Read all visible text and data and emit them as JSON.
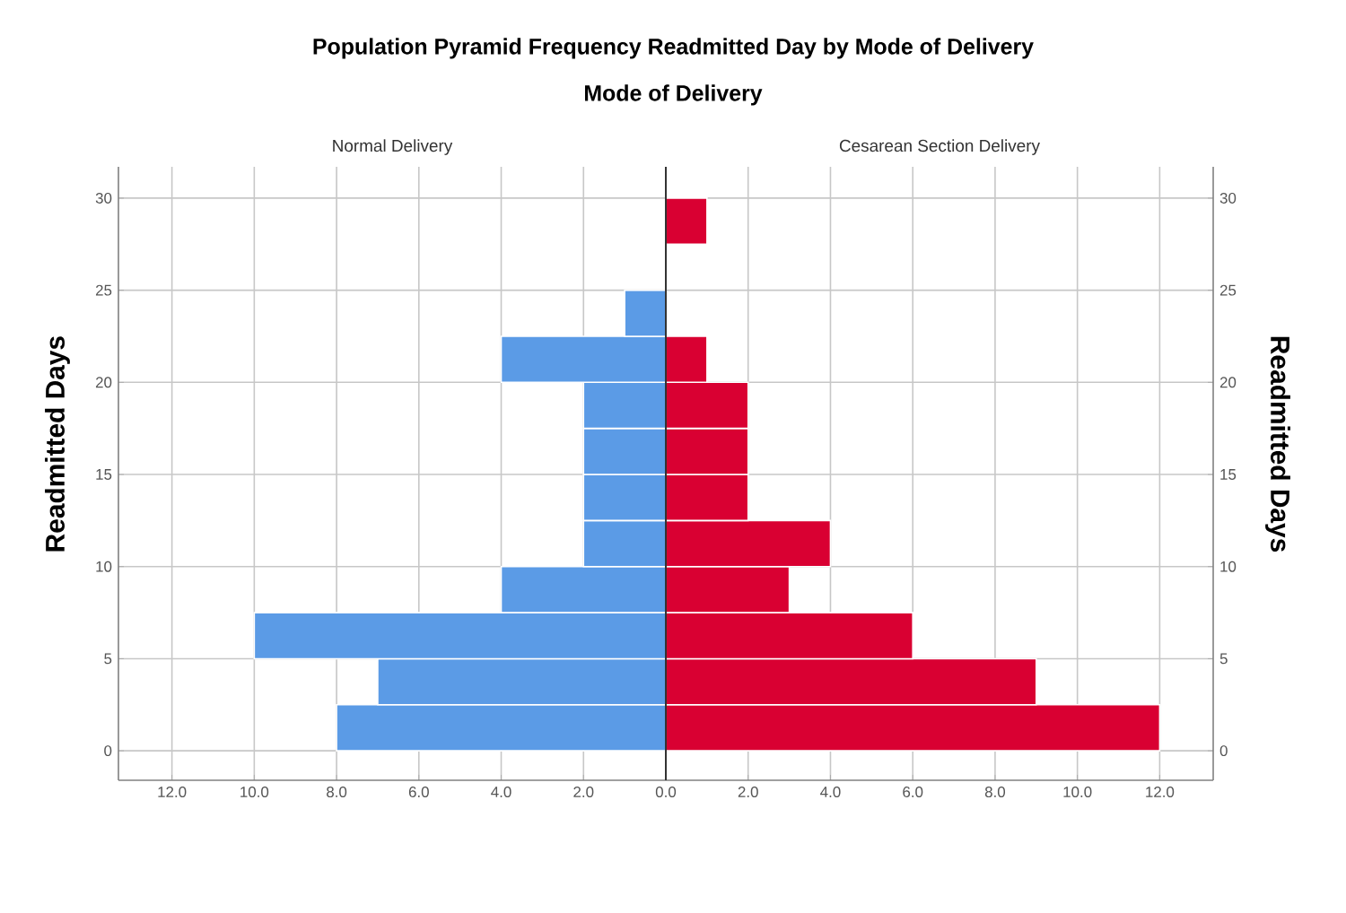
{
  "chart_data": [
    {
      "type": "histogram",
      "title": "Population Pyramid Frequency Readmitted Day by Mode of Delivery",
      "subtitle": "Mode of Delivery",
      "ylabel": "Readmitted Days",
      "orientation": "horizontal",
      "bins": [
        0,
        2.5,
        5,
        7.5,
        10,
        12.5,
        15,
        17.5,
        20,
        22.5,
        25,
        27.5,
        30
      ],
      "series": [
        {
          "name": "Normal Delivery",
          "color": "#5b9be6",
          "values": [
            8,
            7,
            10,
            4,
            2,
            2,
            2,
            2,
            4,
            1,
            0,
            0
          ]
        }
      ],
      "xlim": [
        13.3,
        0
      ],
      "xticks": [
        {
          "value": 12,
          "label": "12.0"
        },
        {
          "value": 10,
          "label": "10.0"
        },
        {
          "value": 8,
          "label": "8.0"
        },
        {
          "value": 6,
          "label": "6.0"
        },
        {
          "value": 4,
          "label": "4.0"
        },
        {
          "value": 2,
          "label": "2.0"
        },
        {
          "value": 0,
          "label": null
        }
      ],
      "ylim": [
        -1.6,
        31.7
      ],
      "yticks": [
        0,
        5,
        10,
        15,
        20,
        25,
        30
      ],
      "grid": true
    },
    {
      "type": "histogram",
      "ylabel": "Readmitted Days",
      "orientation": "horizontal",
      "bins": [
        0,
        2.5,
        5,
        7.5,
        10,
        12.5,
        15,
        17.5,
        20,
        22.5,
        25,
        27.5,
        30
      ],
      "series": [
        {
          "name": "Cesarean Section Delivery",
          "color": "#d90032",
          "values": [
            12,
            9,
            6,
            3,
            4,
            2,
            2,
            2,
            1,
            0,
            0,
            1
          ]
        }
      ],
      "xlim": [
        0,
        13.3
      ],
      "xticks": [
        {
          "value": 0,
          "label": "0.0"
        },
        {
          "value": 2,
          "label": "2.0"
        },
        {
          "value": 4,
          "label": "4.0"
        },
        {
          "value": 6,
          "label": "6.0"
        },
        {
          "value": 8,
          "label": "8.0"
        },
        {
          "value": 10,
          "label": "10.0"
        },
        {
          "value": 12,
          "label": "12.0"
        }
      ],
      "ylim": [
        -1.6,
        31.7
      ],
      "yticks": [
        0,
        5,
        10,
        15,
        20,
        25,
        30
      ],
      "grid": true
    }
  ]
}
